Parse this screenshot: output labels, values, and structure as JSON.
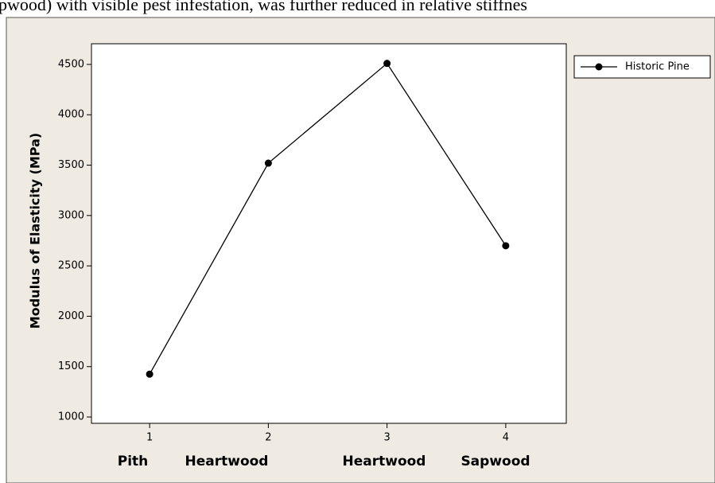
{
  "caption": "pwood) with visible pest infestation, was further reduced in relative stiffnes",
  "chart_data": {
    "type": "line",
    "ylabel": "Modulus of Elasticity (MPa)",
    "x": [
      1,
      2,
      3,
      4
    ],
    "group_labels": [
      "Pith",
      "Heartwood",
      "Heartwood",
      "Sapwood"
    ],
    "series": [
      {
        "name": "Historic Pine",
        "color": "#000000",
        "values": [
          1425,
          3520,
          4510,
          2700
        ]
      }
    ],
    "xlim": [
      0.51,
      4.51
    ],
    "xticks": [
      1,
      2,
      3,
      4
    ],
    "ylim": [
      937,
      4705
    ],
    "yticks": [
      1000,
      1500,
      2000,
      2500,
      3000,
      3500,
      4000,
      4500
    ],
    "legend": "right",
    "grid": false
  }
}
